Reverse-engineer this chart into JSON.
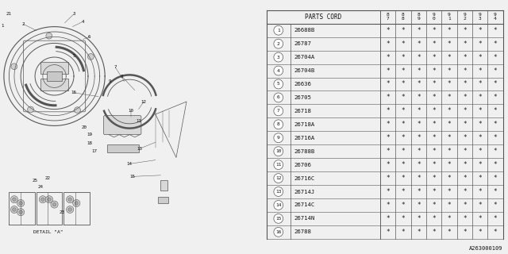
{
  "parts_cord_header": "PARTS CORD",
  "year_columns": [
    "8\n7",
    "8\n8",
    "8\n9",
    "9\n0",
    "9\n1",
    "9\n2",
    "9\n3",
    "9\n4"
  ],
  "rows": [
    {
      "num": 1,
      "code": "26688B"
    },
    {
      "num": 2,
      "code": "26787"
    },
    {
      "num": 3,
      "code": "26704A"
    },
    {
      "num": 4,
      "code": "26704B"
    },
    {
      "num": 5,
      "code": "26636"
    },
    {
      "num": 6,
      "code": "26705"
    },
    {
      "num": 7,
      "code": "26718"
    },
    {
      "num": 8,
      "code": "26718A"
    },
    {
      "num": 9,
      "code": "26716A"
    },
    {
      "num": 10,
      "code": "26788B"
    },
    {
      "num": 11,
      "code": "26706"
    },
    {
      "num": 12,
      "code": "26716C"
    },
    {
      "num": 13,
      "code": "26714J"
    },
    {
      "num": 14,
      "code": "26714C"
    },
    {
      "num": 15,
      "code": "26714N"
    },
    {
      "num": 16,
      "code": "26788"
    }
  ],
  "star": "*",
  "footnote": "A263000109",
  "bg_color": "#f0f0f0",
  "table_bg": "#f0f0f0",
  "line_color": "#555555",
  "text_color": "#111111",
  "font_size_header": 5.5,
  "font_size_code": 5.2,
  "font_size_num": 4.5,
  "font_size_year": 4.5,
  "font_size_star": 5.5,
  "font_size_footnote": 5.0,
  "font_size_label": 4.2,
  "font_size_detail": 4.5
}
